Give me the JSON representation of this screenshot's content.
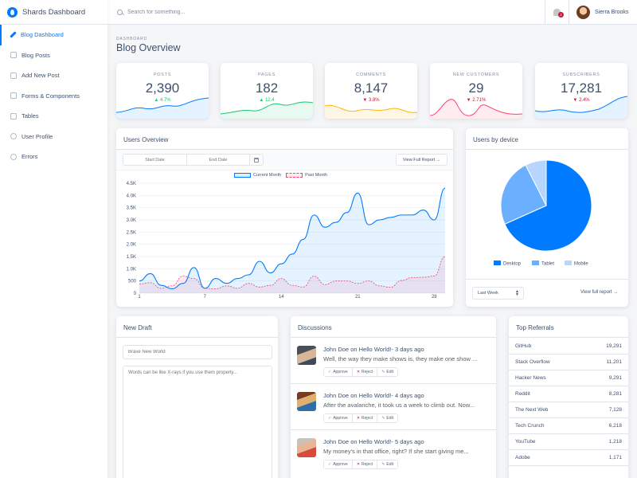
{
  "brand": {
    "name": "Shards Dashboard"
  },
  "sidebar": {
    "items": [
      {
        "label": "Blog Dashboard",
        "icon": "edit-icon"
      },
      {
        "label": "Blog Posts",
        "icon": "posts-icon"
      },
      {
        "label": "Add New Post",
        "icon": "note-add-icon"
      },
      {
        "label": "Forms & Components",
        "icon": "components-icon"
      },
      {
        "label": "Tables",
        "icon": "table-icon"
      },
      {
        "label": "User Profile",
        "icon": "user-icon"
      },
      {
        "label": "Errors",
        "icon": "error-icon"
      }
    ]
  },
  "search": {
    "placeholder": "Search for something..."
  },
  "notifications": {
    "count": "2"
  },
  "user": {
    "name": "Sierra Brooks"
  },
  "page": {
    "subtitle": "DASHBOARD",
    "title": "Blog Overview"
  },
  "stats": [
    {
      "label": "POSTS",
      "value": "2,390",
      "change": "4.7%",
      "trend": "up",
      "color": "#007bff"
    },
    {
      "label": "PAGES",
      "value": "182",
      "change": "12.4",
      "trend": "up",
      "color": "#17c671"
    },
    {
      "label": "COMMENTS",
      "value": "8,147",
      "change": "3.8%",
      "trend": "down",
      "color": "#ffb400"
    },
    {
      "label": "NEW CUSTOMERS",
      "value": "29",
      "change": "2.71%",
      "trend": "down",
      "color": "#ff4169"
    },
    {
      "label": "SUBSCRIBERS",
      "value": "17,281",
      "change": "2.4%",
      "trend": "down",
      "color": "#007bff"
    }
  ],
  "users_overview": {
    "title": "Users Overview",
    "start_placeholder": "Start Date",
    "end_placeholder": "End Date",
    "report_label": "View Full Report →"
  },
  "users_by_device": {
    "title": "Users by device",
    "select_value": "Last Week",
    "report_label": "View full report →"
  },
  "chart_data": [
    {
      "type": "line",
      "title": "",
      "xlabel": "",
      "ylabel": "",
      "ylim": [
        0,
        4500
      ],
      "yticks": [
        "0",
        "500",
        "1.0K",
        "1.5K",
        "2.0K",
        "2.5K",
        "3.0K",
        "3.5K",
        "4.0K",
        "4.5K"
      ],
      "xticks": [
        "1",
        "7",
        "14",
        "21",
        "28"
      ],
      "grid": true,
      "legend": "top-center",
      "x": [
        1,
        2,
        3,
        4,
        5,
        6,
        7,
        8,
        9,
        10,
        11,
        12,
        13,
        14,
        15,
        16,
        17,
        18,
        19,
        20,
        21,
        22,
        23,
        24,
        25,
        26,
        27,
        28,
        29
      ],
      "series": [
        {
          "name": "Current Month",
          "color": "#007bff",
          "values": [
            500,
            800,
            320,
            180,
            400,
            1050,
            200,
            600,
            400,
            600,
            750,
            1300,
            830,
            1200,
            1600,
            2200,
            3200,
            2700,
            2900,
            3300,
            4100,
            2800,
            3000,
            3100,
            3200,
            3200,
            3400,
            3000,
            4300
          ]
        },
        {
          "name": "Past Month",
          "color": "#ff4169",
          "values": [
            380,
            430,
            200,
            300,
            700,
            600,
            200,
            180,
            300,
            200,
            400,
            250,
            320,
            600,
            320,
            250,
            700,
            350,
            500,
            500,
            400,
            500,
            300,
            240,
            520,
            640,
            650,
            700,
            1500
          ]
        }
      ]
    },
    {
      "type": "pie",
      "categories": [
        "Desktop",
        "Tablet",
        "Mobile"
      ],
      "values": [
        68.3,
        24.2,
        7.5
      ],
      "colors": [
        "#007bff",
        "#6bafff",
        "#b7d6ff"
      ],
      "legend": "bottom"
    }
  ],
  "new_draft": {
    "title": "New Draft",
    "title_placeholder": "Brave New World",
    "body_placeholder": "Words can be like X-rays if you use them properly..."
  },
  "discussions": {
    "title": "Discussions",
    "approve_label": "Approve",
    "reject_label": "Reject",
    "edit_label": "Edit",
    "items": [
      {
        "author": "John Doe",
        "on": "on",
        "post": "Hello World!",
        "time": "- 3 days ago",
        "text": "Well, the way they make shows is, they make one show ..."
      },
      {
        "author": "John Doe",
        "on": "on",
        "post": "Hello World!",
        "time": "- 4 days ago",
        "text": "After the avalanche, it took us a week to climb out. Now..."
      },
      {
        "author": "John Doe",
        "on": "on",
        "post": "Hello World!",
        "time": "- 5 days ago",
        "text": "My money's in that office, right? If she start giving me..."
      }
    ]
  },
  "top_referrals": {
    "title": "Top Referrals",
    "items": [
      {
        "name": "GitHub",
        "count": "19,291"
      },
      {
        "name": "Stack Overflow",
        "count": "11,201"
      },
      {
        "name": "Hacker News",
        "count": "9,291"
      },
      {
        "name": "Reddit",
        "count": "8,281"
      },
      {
        "name": "The Next Web",
        "count": "7,128"
      },
      {
        "name": "Tech Crunch",
        "count": "6,218"
      },
      {
        "name": "YouTube",
        "count": "1,218"
      },
      {
        "name": "Adobe",
        "count": "1,171"
      }
    ]
  }
}
